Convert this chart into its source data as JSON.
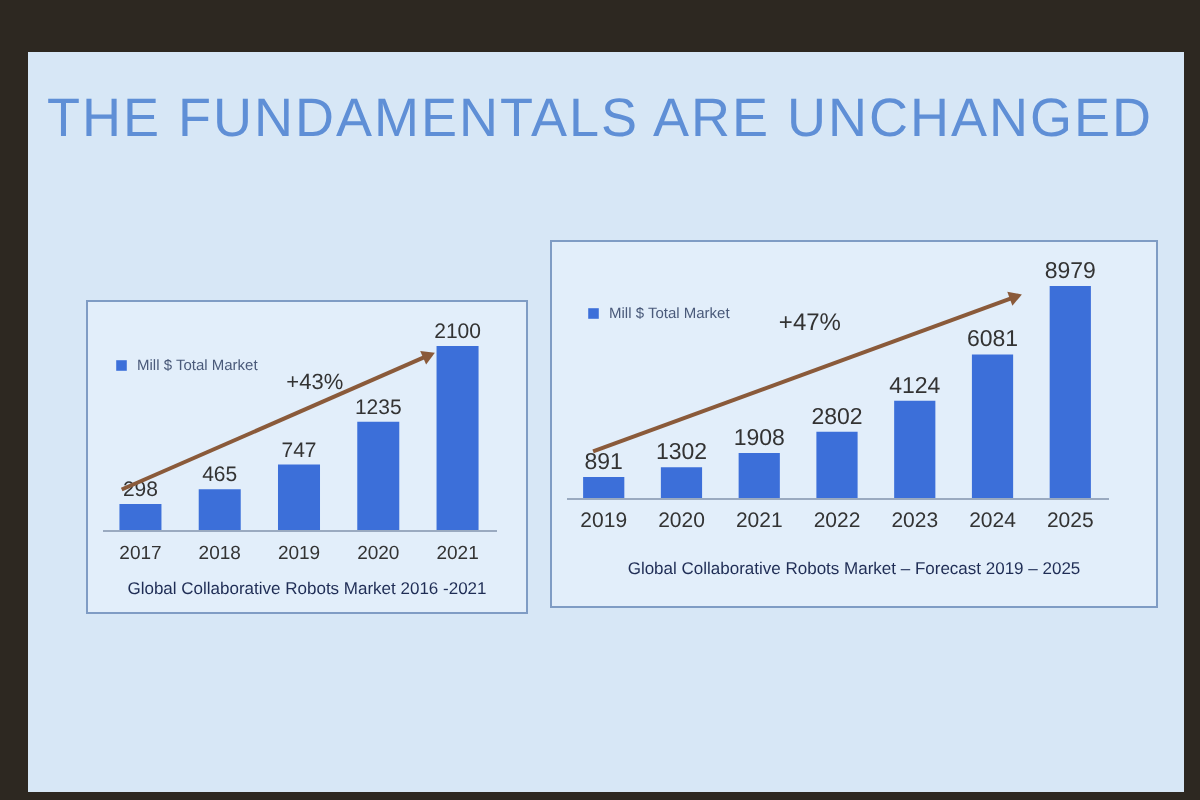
{
  "chart_data": [
    {
      "type": "bar",
      "title": "THE FUNDAMENTALS ARE UNCHANGED",
      "categories": [
        "2017",
        "2018",
        "2019",
        "2020",
        "2021"
      ],
      "series": [
        {
          "name": "Mill $ Total Market",
          "color": "#3c6fd9",
          "values": [
            298,
            465,
            747,
            1235,
            2100
          ]
        }
      ],
      "data_labels": true,
      "legend": "top left",
      "annotations": [
        "+43%",
        "Global Collaborative Robots Market 2016 -2021"
      ]
    },
    {
      "type": "bar",
      "categories": [
        "2019",
        "2020",
        "2021",
        "2022",
        "2023",
        "2024",
        "2025"
      ],
      "series": [
        {
          "name": "Mill $ Total Market",
          "color": "#3c6fd9",
          "values": [
            891,
            1302,
            1908,
            2802,
            4124,
            6081,
            8979
          ]
        }
      ],
      "data_labels": true,
      "legend": "top left",
      "annotations": [
        "+47%",
        "Global Collaborative Robots Market – Forecast 2019 – 2025"
      ]
    }
  ]
}
